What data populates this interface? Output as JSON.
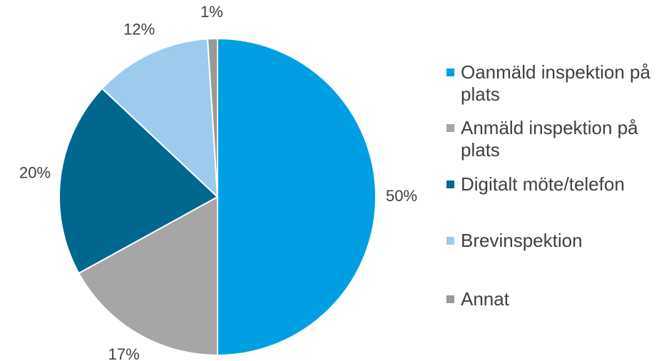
{
  "chart_data": {
    "type": "pie",
    "categories": [
      "Oanmäld inspektion på plats",
      "Anmäld inspektion på plats",
      "Digitalt möte/telefon",
      "Brevinspektion",
      "Annat"
    ],
    "values": [
      50,
      17,
      20,
      12,
      1
    ],
    "value_labels": [
      "50%",
      "17%",
      "20%",
      "12%",
      "1%"
    ],
    "colors": [
      "#009fe3",
      "#a6a6a6",
      "#00678e",
      "#9dcbed",
      "#999999"
    ],
    "legend": "right"
  }
}
